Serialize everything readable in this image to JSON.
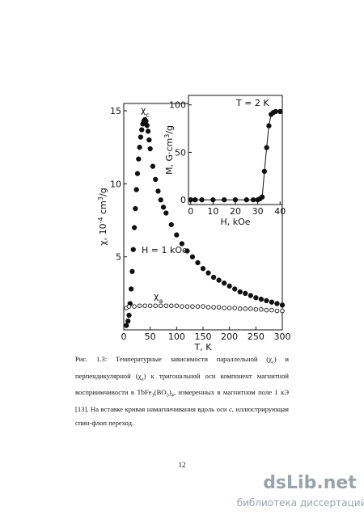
{
  "chart_data": [
    {
      "type": "scatter",
      "xlabel": "T, K",
      "ylabel": [
        {
          "text": "χ, 10"
        },
        {
          "text": "-4",
          "sup": true
        },
        {
          "text": " cm"
        },
        {
          "text": "3",
          "sup": true
        },
        {
          "text": "/g"
        }
      ],
      "annotation": "H = 1 kOe",
      "xlim": [
        0,
        300
      ],
      "ylim": [
        0,
        15.5
      ],
      "xticks": [
        0,
        50,
        100,
        150,
        200,
        250,
        300
      ],
      "yticks": [
        5,
        10,
        15
      ],
      "series": [
        {
          "name": "χ",
          "subscript": "c",
          "marker": "filled",
          "color": "#111111",
          "x": [
            5,
            8,
            10,
            12,
            14,
            16,
            18,
            20,
            22,
            24,
            26,
            28,
            30,
            32,
            34,
            36,
            38,
            40,
            42,
            44,
            46,
            48,
            50,
            55,
            60,
            65,
            70,
            75,
            80,
            90,
            100,
            110,
            120,
            130,
            140,
            150,
            160,
            170,
            180,
            190,
            200,
            210,
            220,
            230,
            240,
            250,
            260,
            270,
            280,
            290,
            300
          ],
          "values": [
            0.3,
            0.6,
            1.0,
            1.8,
            2.8,
            4.0,
            5.5,
            7.0,
            8.3,
            9.6,
            10.7,
            11.7,
            12.5,
            13.2,
            13.7,
            14.1,
            14.3,
            14.4,
            14.3,
            14.0,
            13.6,
            13.0,
            12.4,
            11.2,
            10.3,
            9.5,
            8.9,
            8.4,
            8.0,
            7.2,
            6.5,
            5.9,
            5.4,
            5.0,
            4.6,
            4.2,
            3.9,
            3.6,
            3.4,
            3.2,
            3.0,
            2.8,
            2.6,
            2.5,
            2.35,
            2.2,
            2.1,
            2.0,
            1.9,
            1.8,
            1.7
          ]
        },
        {
          "name": "χ",
          "subscript": "a",
          "marker": "open",
          "color": "#111111",
          "x": [
            5,
            10,
            20,
            30,
            40,
            50,
            60,
            70,
            80,
            90,
            100,
            110,
            120,
            130,
            140,
            150,
            160,
            170,
            180,
            190,
            200,
            210,
            220,
            230,
            240,
            250,
            260,
            270,
            280,
            290,
            300
          ],
          "values": [
            1.5,
            1.6,
            1.6,
            1.65,
            1.65,
            1.65,
            1.65,
            1.65,
            1.65,
            1.65,
            1.65,
            1.6,
            1.6,
            1.6,
            1.6,
            1.6,
            1.55,
            1.55,
            1.55,
            1.5,
            1.5,
            1.5,
            1.45,
            1.45,
            1.45,
            1.4,
            1.4,
            1.35,
            1.35,
            1.3,
            1.3
          ]
        }
      ]
    },
    {
      "type": "line",
      "xlabel": "H, kOe",
      "ylabel": [
        {
          "text": "M, G·cm"
        },
        {
          "text": "3",
          "sup": true
        },
        {
          "text": "/g"
        }
      ],
      "annotation": "T = 2 K",
      "xlim": [
        -1,
        41
      ],
      "ylim": [
        -5,
        110
      ],
      "xticks": [
        0,
        10,
        20,
        30,
        40
      ],
      "yticks": [
        0,
        50,
        100
      ],
      "series": [
        {
          "marker": "filled",
          "color": "#111111",
          "x": [
            0,
            2,
            5,
            10,
            15,
            20,
            25,
            28,
            30,
            31,
            32,
            33,
            34,
            35,
            36,
            37,
            38,
            40
          ],
          "values": [
            0,
            0,
            0,
            0,
            0,
            0,
            0,
            0,
            0,
            1,
            3,
            30,
            55,
            78,
            90,
            92,
            93,
            93
          ]
        }
      ]
    }
  ],
  "caption": [
    {
      "text": "Рис. 1.3: Температурные зависимости параллельной (χ"
    },
    {
      "text": "c",
      "sub": true
    },
    {
      "text": ") и перпендикулярной (χ"
    },
    {
      "text": "a",
      "sub": true
    },
    {
      "text": ") к тригональной оси компонент магнитной восприимчивости в TbFe"
    },
    {
      "text": "3",
      "sub": true
    },
    {
      "text": "(BO"
    },
    {
      "text": "3",
      "sub": true
    },
    {
      "text": ")"
    },
    {
      "text": "4",
      "sub": true
    },
    {
      "text": ", измеренных в магнитном поле 1 кЭ [13]. На вставке кривая намагничивания вдоль оси "
    },
    {
      "text": "c",
      "italic": true
    },
    {
      "text": ", иллюстрирующая спин-флоп переход."
    }
  ],
  "page_number": "12",
  "watermark": {
    "logo": "dsLib.net",
    "tagline": "библиотека диссертаций"
  }
}
